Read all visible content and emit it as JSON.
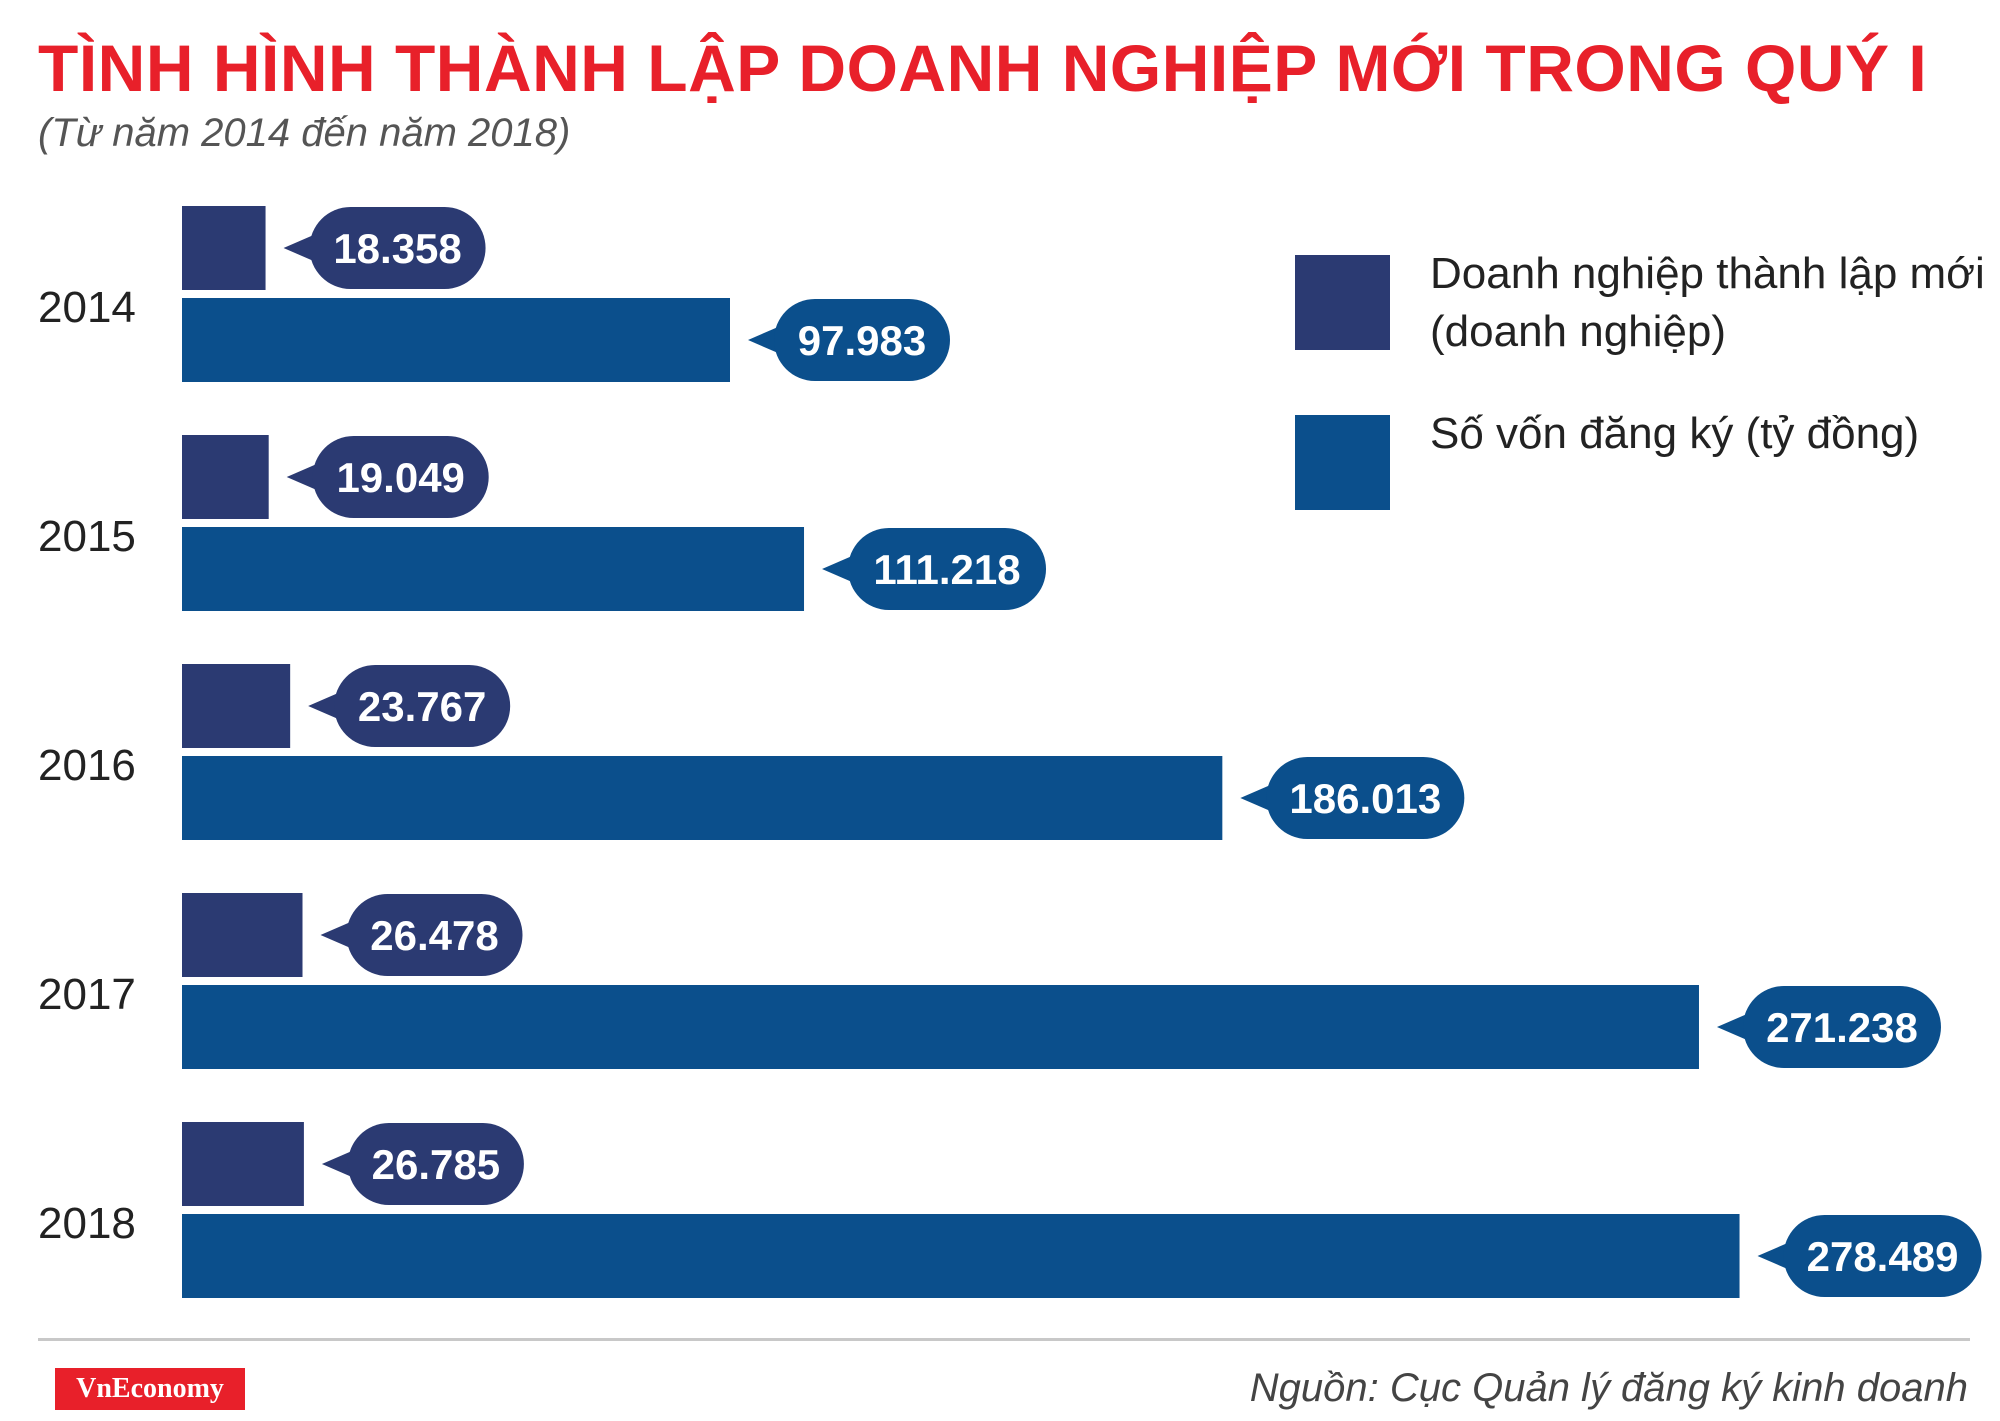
{
  "header": {
    "title": "TÌNH HÌNH THÀNH LẬP DOANH NGHIỆP MỚI TRONG QUÝ I",
    "subtitle": "(Từ năm 2014 đến năm 2018)"
  },
  "legend": {
    "items": [
      {
        "label": "Doanh nghiệp thành lập mới (doanh nghiệp)",
        "color": "#2b3a72"
      },
      {
        "label": "Số vốn đăng ký (tỷ đồng)",
        "color": "#0b4f8c"
      }
    ]
  },
  "footer": {
    "brand": "VnEconomy",
    "source": "Nguồn: Cục Quản lý đăng ký kinh doanh"
  },
  "chart_data": {
    "type": "bar",
    "orientation": "horizontal",
    "categories": [
      "2014",
      "2015",
      "2016",
      "2017",
      "2018"
    ],
    "series": [
      {
        "name": "Doanh nghiệp thành lập mới (doanh nghiệp)",
        "color": "#2b3a72",
        "values": [
          18358,
          19049,
          23767,
          26478,
          26785
        ],
        "labels": [
          "18.358",
          "19.049",
          "23.767",
          "26.478",
          "26.785"
        ]
      },
      {
        "name": "Số vốn đăng ký (tỷ đồng)",
        "color": "#0b4f8c",
        "values": [
          97983,
          111218,
          186013,
          271238,
          278489
        ],
        "labels": [
          "97.983",
          "111.218",
          "186.013",
          "271.238",
          "278.489"
        ]
      }
    ],
    "grid": false,
    "legend_position": "top-right"
  }
}
